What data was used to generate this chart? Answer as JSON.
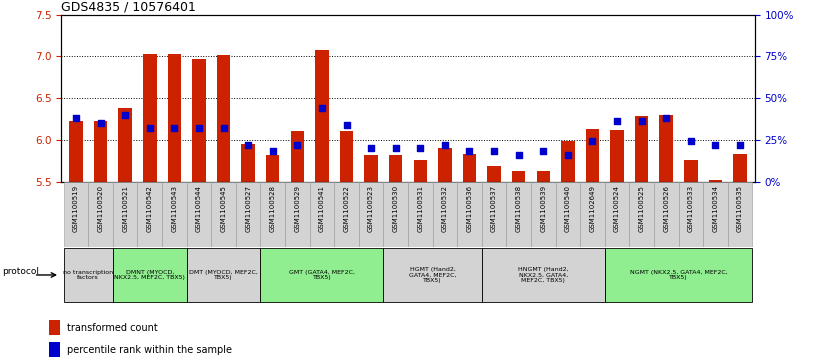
{
  "title": "GDS4835 / 10576401",
  "samples": [
    "GSM1100519",
    "GSM1100520",
    "GSM1100521",
    "GSM1100542",
    "GSM1100543",
    "GSM1100544",
    "GSM1100545",
    "GSM1100527",
    "GSM1100528",
    "GSM1100529",
    "GSM1100541",
    "GSM1100522",
    "GSM1100523",
    "GSM1100530",
    "GSM1100531",
    "GSM1100532",
    "GSM1100536",
    "GSM1100537",
    "GSM1100538",
    "GSM1100539",
    "GSM1100540",
    "GSM1102649",
    "GSM1100524",
    "GSM1100525",
    "GSM1100526",
    "GSM1100533",
    "GSM1100534",
    "GSM1100535"
  ],
  "bar_values": [
    6.22,
    6.22,
    6.38,
    7.03,
    7.03,
    6.97,
    7.02,
    5.95,
    5.82,
    6.1,
    7.07,
    6.1,
    5.82,
    5.82,
    5.76,
    5.9,
    5.83,
    5.68,
    5.62,
    5.63,
    5.99,
    6.13,
    6.12,
    6.28,
    6.3,
    5.76,
    5.52,
    5.83
  ],
  "percentile_values": [
    38,
    35,
    40,
    32,
    32,
    32,
    32,
    22,
    18,
    22,
    44,
    34,
    20,
    20,
    20,
    22,
    18,
    18,
    16,
    18,
    16,
    24,
    36,
    36,
    38,
    24,
    22,
    22
  ],
  "groups": [
    {
      "label": "no transcription\nfactors",
      "start": 0,
      "end": 1,
      "color": "#d3d3d3"
    },
    {
      "label": "DMNT (MYOCD,\nNKX2.5, MEF2C, TBX5)",
      "start": 2,
      "end": 4,
      "color": "#90EE90"
    },
    {
      "label": "DMT (MYOCD, MEF2C,\nTBX5)",
      "start": 5,
      "end": 7,
      "color": "#d3d3d3"
    },
    {
      "label": "GMT (GATA4, MEF2C,\nTBX5)",
      "start": 8,
      "end": 12,
      "color": "#90EE90"
    },
    {
      "label": "HGMT (Hand2,\nGATA4, MEF2C,\nTBX5)",
      "start": 13,
      "end": 16,
      "color": "#d3d3d3"
    },
    {
      "label": "HNGMT (Hand2,\nNKX2.5, GATA4,\nMEF2C, TBX5)",
      "start": 17,
      "end": 21,
      "color": "#d3d3d3"
    },
    {
      "label": "NGMT (NKX2.5, GATA4, MEF2C,\nTBX5)",
      "start": 22,
      "end": 27,
      "color": "#90EE90"
    }
  ],
  "ylim": [
    5.5,
    7.5
  ],
  "yticks_left": [
    5.5,
    6.0,
    6.5,
    7.0,
    7.5
  ],
  "yticks_right": [
    0,
    25,
    50,
    75,
    100
  ],
  "bar_color": "#cc2200",
  "dot_color": "#0000cc",
  "background_color": "#ffffff",
  "legend_items": [
    "transformed count",
    "percentile rank within the sample"
  ]
}
